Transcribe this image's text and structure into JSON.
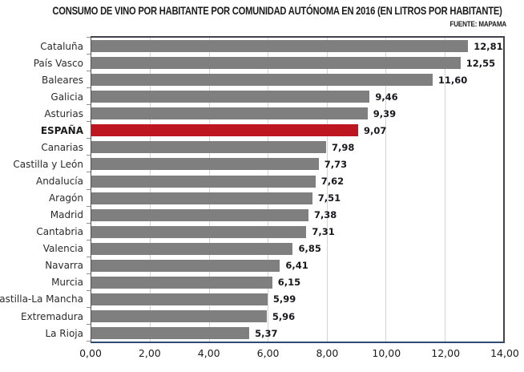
{
  "title": "CONSUMO DE VINO POR HABITANTE POR COMUNIDAD AUTÓNOMA EN 2016 (EN LITROS POR HABITANTE)",
  "source": "FUENTE: MAPAMA",
  "chart_data": {
    "type": "bar",
    "orientation": "horizontal",
    "title": "CONSUMO DE VINO POR HABITANTE POR COMUNIDAD AUTÓNOMA EN 2016 (EN LITROS POR HABITANTE)",
    "source": "FUENTE: MAPAMA",
    "categories": [
      "Cataluña",
      "País Vasco",
      "Baleares",
      "Galicia",
      "Asturias",
      "ESPAÑA",
      "Canarias",
      "Castilla y León",
      "Andalucía",
      "Aragón",
      "Madrid",
      "Cantabria",
      "Valencia",
      "Navarra",
      "Murcia",
      "Castilla-La Mancha",
      "Extremadura",
      "La Rioja"
    ],
    "values": [
      12.81,
      12.55,
      11.6,
      9.46,
      9.39,
      9.07,
      7.98,
      7.73,
      7.62,
      7.51,
      7.38,
      7.31,
      6.85,
      6.41,
      6.15,
      5.99,
      5.96,
      5.37
    ],
    "value_labels": [
      "12,81",
      "12,55",
      "11,60",
      "9,46",
      "9,39",
      "9,07",
      "7,98",
      "7,73",
      "7,62",
      "7,51",
      "7,38",
      "7,31",
      "6,85",
      "6,41",
      "6,15",
      "5,99",
      "5,96",
      "5,37"
    ],
    "highlight_category": "ESPAÑA",
    "highlight_index": 5,
    "xlim": [
      0,
      14
    ],
    "x_tick_values": [
      0,
      2,
      4,
      6,
      8,
      10,
      12,
      14
    ],
    "x_ticks": [
      "0,00",
      "2,00",
      "4,00",
      "6,00",
      "8,00",
      "10,00",
      "12,00",
      "14,00"
    ],
    "grid": "vertical",
    "legend": "none",
    "colors": {
      "bar": "#7f7f7f",
      "highlight_bar": "#be1621",
      "gridline": "#d4d4d4",
      "plot_border": "#43434e",
      "axis_bottom": "#2e4972",
      "text": "#1b1b1b"
    }
  }
}
